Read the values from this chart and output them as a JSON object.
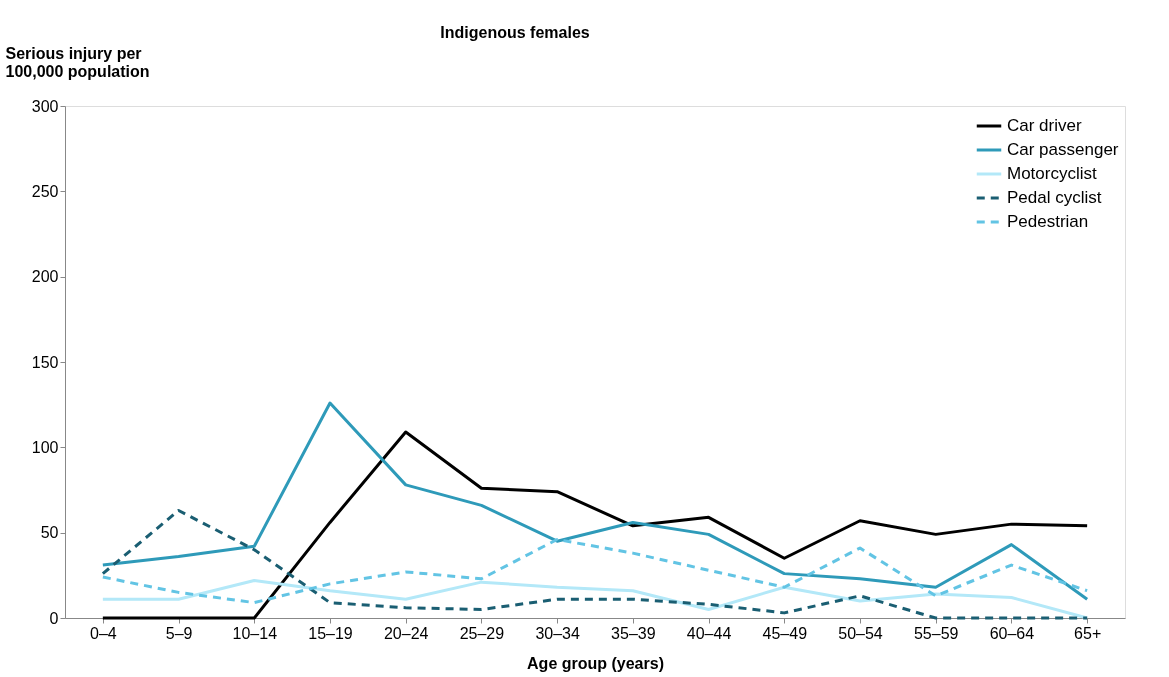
{
  "chart_data": {
    "type": "line",
    "title": "Indigenous females",
    "xlabel": "Age group (years)",
    "ylabel": "Serious injury per 100,000 population",
    "categories": [
      "0–4",
      "5–9",
      "10–14",
      "15–19",
      "20–24",
      "25–29",
      "30–34",
      "35–39",
      "40–44",
      "45–49",
      "50–54",
      "55–59",
      "60–64",
      "65+"
    ],
    "series": [
      {
        "name": "Car driver",
        "color": "#000000",
        "line_style": "solid",
        "values": [
          0,
          0,
          0,
          56,
          109,
          76,
          74,
          54,
          59,
          35,
          57,
          49,
          55,
          54
        ]
      },
      {
        "name": "Car passenger",
        "color": "#2e9ab9",
        "line_style": "solid",
        "values": [
          31,
          36,
          42,
          126,
          78,
          66,
          45,
          56,
          49,
          26,
          23,
          18,
          43,
          11
        ]
      },
      {
        "name": "Motorcyclist",
        "color": "#b3e8f8",
        "line_style": "solid",
        "values": [
          11,
          11,
          22,
          16,
          11,
          21,
          18,
          16,
          5,
          18,
          10,
          14,
          12,
          0
        ]
      },
      {
        "name": "Pedal cyclist",
        "color": "#1a5e72",
        "line_style": "dashed",
        "values": [
          26,
          63,
          40,
          9,
          6,
          5,
          11,
          11,
          8,
          3,
          13,
          0,
          0,
          0
        ]
      },
      {
        "name": "Pedestrian",
        "color": "#62c4e4",
        "line_style": "dashed",
        "values": [
          24,
          15,
          9,
          20,
          27,
          23,
          46,
          38,
          28,
          18,
          41,
          13,
          31,
          16
        ]
      }
    ],
    "ylim": [
      0,
      300
    ],
    "yticks": [
      0,
      50,
      100,
      150,
      200,
      250,
      300
    ],
    "grid": false,
    "legend": "top right",
    "marker": "none"
  }
}
